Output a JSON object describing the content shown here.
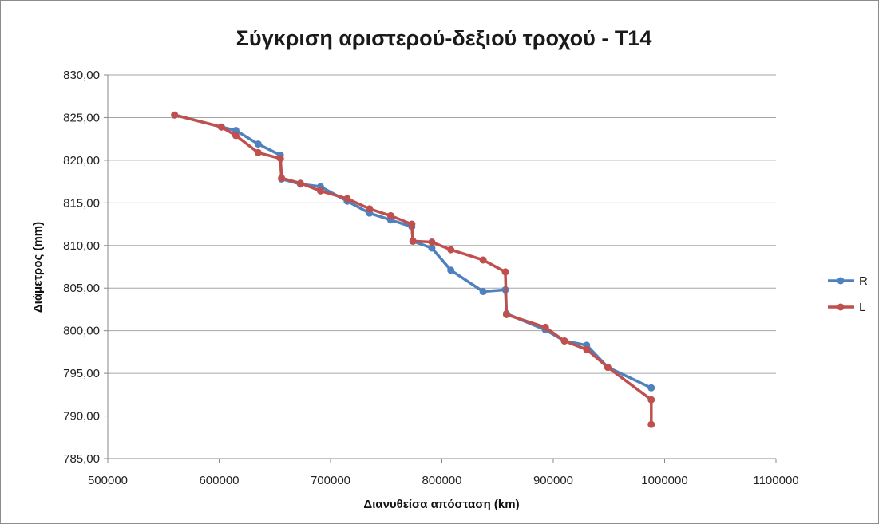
{
  "chart_data": {
    "type": "line",
    "title": "Σύγκριση αριστερού-δεξιού τροχού - Τ14",
    "xlabel": "Διανυθείσα απόσταση  (km)",
    "ylabel": "Διάμετρος (mm)",
    "xlim": [
      500000,
      1100000
    ],
    "ylim": [
      785,
      830
    ],
    "x_ticks": [
      "500000",
      "600000",
      "700000",
      "800000",
      "900000",
      "1000000",
      "1100000"
    ],
    "y_ticks": [
      "785,00",
      "790,00",
      "795,00",
      "800,00",
      "805,00",
      "810,00",
      "815,00",
      "820,00",
      "825,00",
      "830,00"
    ],
    "y_tick_values": [
      785,
      790,
      795,
      800,
      805,
      810,
      815,
      820,
      825,
      830
    ],
    "x_tick_values": [
      500000,
      600000,
      700000,
      800000,
      900000,
      1000000,
      1100000
    ],
    "grid": "horizontal",
    "legend_position": "right",
    "series": [
      {
        "name": "R",
        "color": "#4f81bd",
        "points": [
          [
            560000,
            825.3
          ],
          [
            602000,
            823.9
          ],
          [
            615000,
            823.5
          ],
          [
            635000,
            821.9
          ],
          [
            655000,
            820.6
          ],
          [
            656000,
            817.8
          ],
          [
            673000,
            817.2
          ],
          [
            691000,
            816.9
          ],
          [
            715000,
            815.2
          ],
          [
            735000,
            813.8
          ],
          [
            754000,
            813.0
          ],
          [
            773000,
            812.2
          ],
          [
            774000,
            810.5
          ],
          [
            791000,
            809.7
          ],
          [
            808000,
            807.1
          ],
          [
            837000,
            804.6
          ],
          [
            857000,
            804.8
          ],
          [
            858000,
            802.0
          ],
          [
            893000,
            800.1
          ],
          [
            910000,
            798.8
          ],
          [
            930000,
            798.3
          ],
          [
            949000,
            795.7
          ],
          [
            988000,
            793.3
          ]
        ]
      },
      {
        "name": "L",
        "color": "#c0504d",
        "points": [
          [
            560000,
            825.3
          ],
          [
            602000,
            823.9
          ],
          [
            615000,
            822.9
          ],
          [
            635000,
            820.9
          ],
          [
            655000,
            820.2
          ],
          [
            656000,
            817.9
          ],
          [
            673000,
            817.3
          ],
          [
            691000,
            816.4
          ],
          [
            715000,
            815.5
          ],
          [
            735000,
            814.3
          ],
          [
            754000,
            813.5
          ],
          [
            773000,
            812.5
          ],
          [
            774000,
            810.5
          ],
          [
            791000,
            810.4
          ],
          [
            808000,
            809.5
          ],
          [
            837000,
            808.3
          ],
          [
            857000,
            806.9
          ],
          [
            858000,
            801.9
          ],
          [
            893000,
            800.4
          ],
          [
            910000,
            798.8
          ],
          [
            930000,
            797.8
          ],
          [
            949000,
            795.7
          ],
          [
            988000,
            791.9
          ],
          [
            988000,
            789.0
          ]
        ]
      }
    ]
  }
}
